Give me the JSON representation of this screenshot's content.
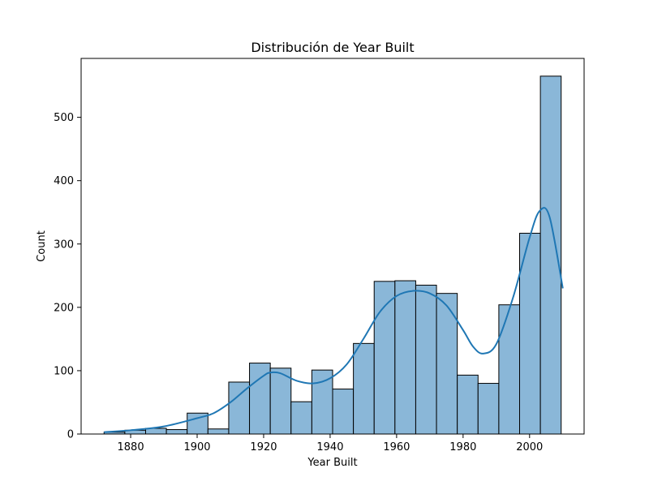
{
  "chart_data": {
    "type": "bar",
    "title": "Distribución de Year Built",
    "xlabel": "Year Built",
    "ylabel": "Count",
    "bins": [
      {
        "x0": 1872.0,
        "x1": 1878.25,
        "count": 3
      },
      {
        "x0": 1878.25,
        "x1": 1884.5,
        "count": 6
      },
      {
        "x0": 1884.5,
        "x1": 1890.75,
        "count": 9
      },
      {
        "x0": 1890.75,
        "x1": 1897.0,
        "count": 7
      },
      {
        "x0": 1897.0,
        "x1": 1903.25,
        "count": 33
      },
      {
        "x0": 1903.25,
        "x1": 1909.5,
        "count": 8
      },
      {
        "x0": 1909.5,
        "x1": 1915.75,
        "count": 82
      },
      {
        "x0": 1915.75,
        "x1": 1922.0,
        "count": 112
      },
      {
        "x0": 1922.0,
        "x1": 1928.25,
        "count": 104
      },
      {
        "x0": 1928.25,
        "x1": 1934.5,
        "count": 51
      },
      {
        "x0": 1934.5,
        "x1": 1940.75,
        "count": 101
      },
      {
        "x0": 1940.75,
        "x1": 1947.0,
        "count": 71
      },
      {
        "x0": 1947.0,
        "x1": 1953.25,
        "count": 143
      },
      {
        "x0": 1953.25,
        "x1": 1959.5,
        "count": 241
      },
      {
        "x0": 1959.5,
        "x1": 1965.75,
        "count": 242
      },
      {
        "x0": 1965.75,
        "x1": 1972.0,
        "count": 235
      },
      {
        "x0": 1972.0,
        "x1": 1978.25,
        "count": 222
      },
      {
        "x0": 1978.25,
        "x1": 1984.5,
        "count": 93
      },
      {
        "x0": 1984.5,
        "x1": 1990.75,
        "count": 80
      },
      {
        "x0": 1990.75,
        "x1": 1997.0,
        "count": 204
      },
      {
        "x0": 1997.0,
        "x1": 2003.25,
        "count": 317
      },
      {
        "x0": 2003.25,
        "x1": 2009.5,
        "count": 565
      }
    ],
    "kde": {
      "x": [
        1872,
        1880,
        1890,
        1900,
        1905,
        1910,
        1915,
        1920,
        1922,
        1925,
        1930,
        1935,
        1940,
        1945,
        1950,
        1955,
        1960,
        1965,
        1970,
        1975,
        1980,
        1983,
        1986,
        1990,
        1995,
        2000,
        2003,
        2006,
        2010
      ],
      "y": [
        3,
        6,
        12,
        25,
        33,
        50,
        72,
        92,
        97,
        96,
        84,
        80,
        88,
        110,
        150,
        193,
        218,
        226,
        222,
        203,
        164,
        138,
        127,
        142,
        215,
        310,
        352,
        343,
        230
      ]
    },
    "xlim": [
      1865.1,
      2016.4
    ],
    "ylim": [
      0,
      593
    ],
    "xticks": [
      1880,
      1900,
      1920,
      1940,
      1960,
      1980,
      2000
    ],
    "yticks": [
      0,
      100,
      200,
      300,
      400,
      500
    ],
    "grid": false,
    "colors": {
      "bar_fill": "#8ab7d8",
      "bar_edge": "#000000",
      "kde_line": "#1f77b4"
    }
  }
}
